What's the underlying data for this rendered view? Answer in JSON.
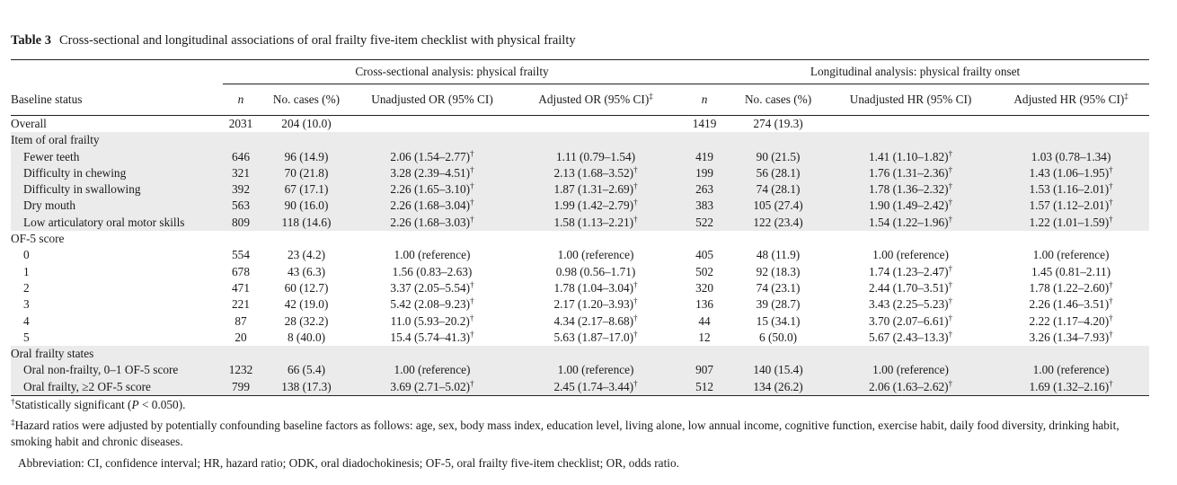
{
  "caption": {
    "label": "Table 3",
    "text": "Cross-sectional and longitudinal associations of oral frailty five-item checklist with physical frailty"
  },
  "groups": {
    "cross": "Cross-sectional analysis: physical frailty",
    "long": "Longitudinal analysis: physical frailty onset"
  },
  "headers": {
    "baseline": "Baseline status",
    "n": "n",
    "cases": "No. cases (%)",
    "unadj_or": "Unadjusted OR (95% CI)",
    "adj_or": "Adjusted OR (95% CI)",
    "unadj_hr": "Unadjusted HR (95% CI)",
    "adj_hr": "Adjusted HR (95% CI)",
    "dagger": "†",
    "ddagger": "‡"
  },
  "rows": [
    {
      "label": "Overall",
      "indent": false,
      "shade": false,
      "n1": "2031",
      "c1": "204 (10.0)",
      "uor": "",
      "uor_sig": false,
      "aor": "",
      "aor_sig": false,
      "n2": "1419",
      "c2": "274 (19.3)",
      "uhr": "",
      "uhr_sig": false,
      "ahr": "",
      "ahr_sig": false
    },
    {
      "label": "Item of oral frailty",
      "indent": false,
      "shade": true,
      "n1": "",
      "c1": "",
      "uor": "",
      "uor_sig": false,
      "aor": "",
      "aor_sig": false,
      "n2": "",
      "c2": "",
      "uhr": "",
      "uhr_sig": false,
      "ahr": "",
      "ahr_sig": false
    },
    {
      "label": "Fewer teeth",
      "indent": true,
      "shade": true,
      "n1": "646",
      "c1": "96 (14.9)",
      "uor": "2.06 (1.54–2.77)",
      "uor_sig": true,
      "aor": "1.11 (0.79–1.54)",
      "aor_sig": false,
      "n2": "419",
      "c2": "90 (21.5)",
      "uhr": "1.41 (1.10–1.82)",
      "uhr_sig": true,
      "ahr": "1.03 (0.78–1.34)",
      "ahr_sig": false
    },
    {
      "label": "Difficulty in chewing",
      "indent": true,
      "shade": true,
      "n1": "321",
      "c1": "70 (21.8)",
      "uor": "3.28 (2.39–4.51)",
      "uor_sig": true,
      "aor": "2.13 (1.68–3.52)",
      "aor_sig": true,
      "n2": "199",
      "c2": "56 (28.1)",
      "uhr": "1.76 (1.31–2.36)",
      "uhr_sig": true,
      "ahr": "1.43 (1.06–1.95)",
      "ahr_sig": true
    },
    {
      "label": "Difficulty in swallowing",
      "indent": true,
      "shade": true,
      "n1": "392",
      "c1": "67 (17.1)",
      "uor": "2.26 (1.65–3.10)",
      "uor_sig": true,
      "aor": "1.87 (1.31–2.69)",
      "aor_sig": true,
      "n2": "263",
      "c2": "74 (28.1)",
      "uhr": "1.78 (1.36–2.32)",
      "uhr_sig": true,
      "ahr": "1.53 (1.16–2.01)",
      "ahr_sig": true
    },
    {
      "label": "Dry mouth",
      "indent": true,
      "shade": true,
      "n1": "563",
      "c1": "90 (16.0)",
      "uor": "2.26 (1.68–3.04)",
      "uor_sig": true,
      "aor": "1.99 (1.42–2.79)",
      "aor_sig": true,
      "n2": "383",
      "c2": "105 (27.4)",
      "uhr": "1.90 (1.49–2.42)",
      "uhr_sig": true,
      "ahr": "1.57 (1.12–2.01)",
      "ahr_sig": true
    },
    {
      "label": "Low articulatory oral motor skills",
      "indent": true,
      "shade": true,
      "n1": "809",
      "c1": "118 (14.6)",
      "uor": "2.26 (1.68–3.03)",
      "uor_sig": true,
      "aor": "1.58 (1.13–2.21)",
      "aor_sig": true,
      "n2": "522",
      "c2": "122 (23.4)",
      "uhr": "1.54 (1.22–1.96)",
      "uhr_sig": true,
      "ahr": "1.22 (1.01–1.59)",
      "ahr_sig": true
    },
    {
      "label": "OF-5 score",
      "indent": false,
      "shade": false,
      "n1": "",
      "c1": "",
      "uor": "",
      "uor_sig": false,
      "aor": "",
      "aor_sig": false,
      "n2": "",
      "c2": "",
      "uhr": "",
      "uhr_sig": false,
      "ahr": "",
      "ahr_sig": false
    },
    {
      "label": "0",
      "indent": true,
      "shade": false,
      "n1": "554",
      "c1": "23 (4.2)",
      "uor": "1.00 (reference)",
      "uor_sig": false,
      "aor": "1.00 (reference)",
      "aor_sig": false,
      "n2": "405",
      "c2": "48 (11.9)",
      "uhr": "1.00 (reference)",
      "uhr_sig": false,
      "ahr": "1.00 (reference)",
      "ahr_sig": false
    },
    {
      "label": "1",
      "indent": true,
      "shade": false,
      "n1": "678",
      "c1": "43 (6.3)",
      "uor": "1.56 (0.83–2.63)",
      "uor_sig": false,
      "aor": "0.98 (0.56–1.71)",
      "aor_sig": false,
      "n2": "502",
      "c2": "92 (18.3)",
      "uhr": "1.74 (1.23–2.47)",
      "uhr_sig": true,
      "ahr": "1.45 (0.81–2.11)",
      "ahr_sig": false
    },
    {
      "label": "2",
      "indent": true,
      "shade": false,
      "n1": "471",
      "c1": "60 (12.7)",
      "uor": "3.37 (2.05–5.54)",
      "uor_sig": true,
      "aor": "1.78 (1.04–3.04)",
      "aor_sig": true,
      "n2": "320",
      "c2": "74 (23.1)",
      "uhr": "2.44 (1.70–3.51)",
      "uhr_sig": true,
      "ahr": "1.78 (1.22–2.60)",
      "ahr_sig": true
    },
    {
      "label": "3",
      "indent": true,
      "shade": false,
      "n1": "221",
      "c1": "42 (19.0)",
      "uor": "5.42 (2.08–9.23)",
      "uor_sig": true,
      "aor": "2.17 (1.20–3.93)",
      "aor_sig": true,
      "n2": "136",
      "c2": "39 (28.7)",
      "uhr": "3.43 (2.25–5.23)",
      "uhr_sig": true,
      "ahr": "2.26 (1.46–3.51)",
      "ahr_sig": true
    },
    {
      "label": "4",
      "indent": true,
      "shade": false,
      "n1": "87",
      "c1": "28 (32.2)",
      "uor": "11.0 (5.93–20.2)",
      "uor_sig": true,
      "aor": "4.34 (2.17–8.68)",
      "aor_sig": true,
      "n2": "44",
      "c2": "15 (34.1)",
      "uhr": "3.70 (2.07–6.61)",
      "uhr_sig": true,
      "ahr": "2.22 (1.17–4.20)",
      "ahr_sig": true
    },
    {
      "label": "5",
      "indent": true,
      "shade": false,
      "n1": "20",
      "c1": "8 (40.0)",
      "uor": "15.4 (5.74–41.3)",
      "uor_sig": true,
      "aor": "5.63 (1.87–17.0)",
      "aor_sig": true,
      "n2": "12",
      "c2": "6 (50.0)",
      "uhr": "5.67 (2.43–13.3)",
      "uhr_sig": true,
      "ahr": "3.26 (1.34–7.93)",
      "ahr_sig": true
    },
    {
      "label": "Oral frailty states",
      "indent": false,
      "shade": true,
      "n1": "",
      "c1": "",
      "uor": "",
      "uor_sig": false,
      "aor": "",
      "aor_sig": false,
      "n2": "",
      "c2": "",
      "uhr": "",
      "uhr_sig": false,
      "ahr": "",
      "ahr_sig": false
    },
    {
      "label": "Oral non-frailty, 0–1 OF-5 score",
      "indent": true,
      "shade": true,
      "n1": "1232",
      "c1": "66 (5.4)",
      "uor": "1.00 (reference)",
      "uor_sig": false,
      "aor": "1.00 (reference)",
      "aor_sig": false,
      "n2": "907",
      "c2": "140 (15.4)",
      "uhr": "1.00 (reference)",
      "uhr_sig": false,
      "ahr": "1.00 (reference)",
      "ahr_sig": false
    },
    {
      "label": "Oral frailty, ≥2 OF-5 score",
      "indent": true,
      "shade": true,
      "n1": "799",
      "c1": "138 (17.3)",
      "uor": "3.69 (2.71–5.02)",
      "uor_sig": true,
      "aor": "2.45 (1.74–3.44)",
      "aor_sig": true,
      "n2": "512",
      "c2": "134 (26.2)",
      "uhr": "2.06 (1.63–2.62)",
      "uhr_sig": true,
      "ahr": "1.69 (1.32–2.16)",
      "ahr_sig": true
    }
  ],
  "notes": {
    "n1_mark": "†",
    "n1_pre": "Statistically significant (",
    "n1_p": "P",
    "n1_post": " < 0.050).",
    "n2_mark": "‡",
    "n2_text": "Hazard ratios were adjusted by potentially confounding baseline factors as follows: age, sex, body mass index, education level, living alone, low annual income, cognitive function, exercise habit, daily food diversity, drinking habit, smoking habit and chronic diseases.",
    "n3_text": "Abbreviation: CI, confidence interval; HR, hazard ratio; ODK, oral diadochokinesis; OF-5, oral frailty five-item checklist; OR, odds ratio."
  }
}
